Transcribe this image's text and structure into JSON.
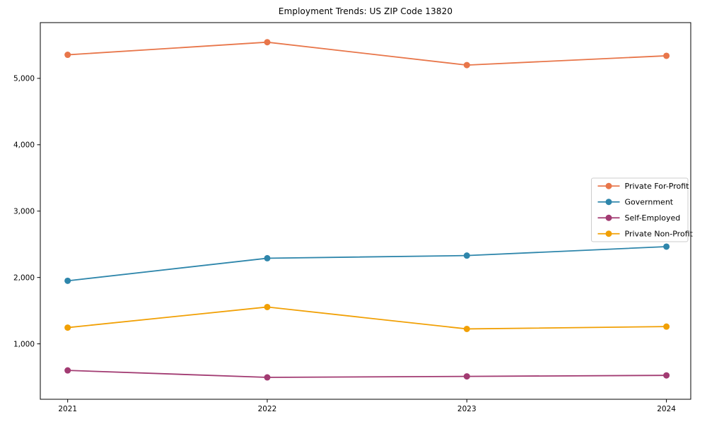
{
  "chart_data": {
    "type": "line",
    "title": "Employment Trends: US ZIP Code 13820",
    "x": [
      "2021",
      "2022",
      "2023",
      "2024"
    ],
    "series": [
      {
        "name": "Private For-Profit",
        "color": "#e8764a",
        "values": [
          5355,
          5545,
          5200,
          5340
        ]
      },
      {
        "name": "Government",
        "color": "#2e86ab",
        "values": [
          1950,
          2290,
          2330,
          2465
        ]
      },
      {
        "name": "Self-Employed",
        "color": "#a23b72",
        "values": [
          600,
          495,
          510,
          525
        ]
      },
      {
        "name": "Private Non-Profit",
        "color": "#f1a005",
        "values": [
          1245,
          1555,
          1225,
          1260
        ]
      }
    ],
    "y_ticks": [
      {
        "value": 1000,
        "label": "1,000"
      },
      {
        "value": 2000,
        "label": "2,000"
      },
      {
        "value": 3000,
        "label": "3,000"
      },
      {
        "value": 4000,
        "label": "4,000"
      },
      {
        "value": 5000,
        "label": "5,000"
      }
    ],
    "ylim": [
      165,
      5840
    ],
    "grid": false,
    "legend_position": "center-right",
    "axis_color": "#000000",
    "legend_border_color": "#cccccc",
    "background_color": "#ffffff"
  }
}
